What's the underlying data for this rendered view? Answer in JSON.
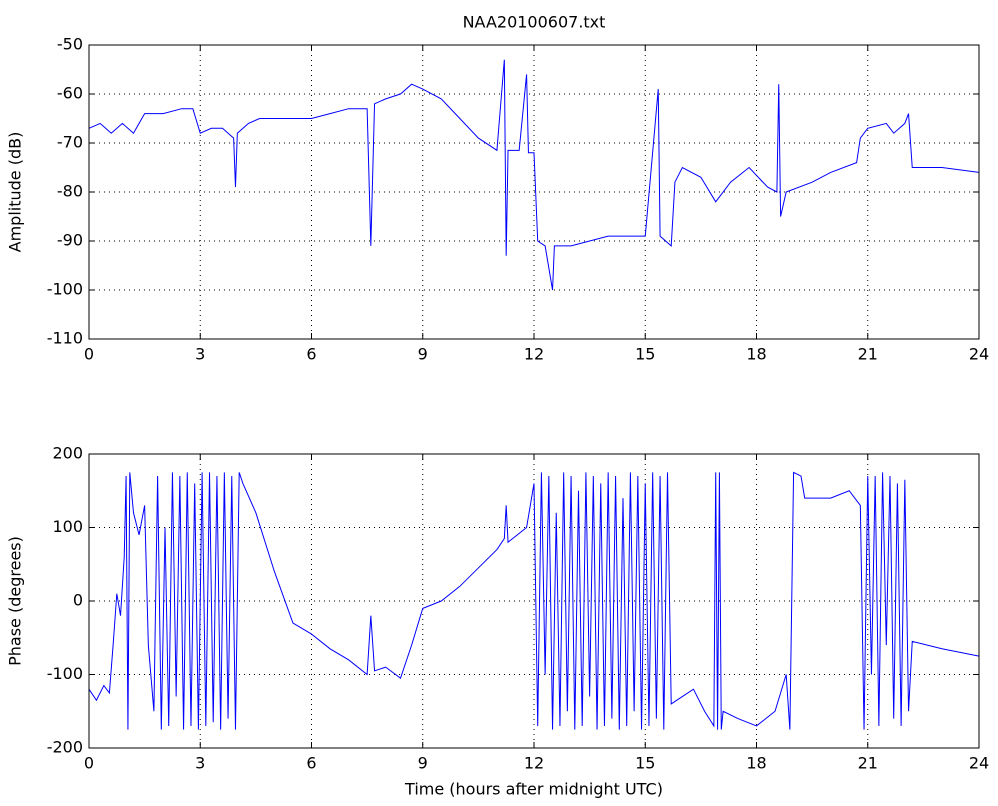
{
  "chart_data": [
    {
      "type": "line",
      "title": "NAA20100607.txt",
      "ylabel": "Amplitude (dB)",
      "xlim": [
        0,
        24
      ],
      "xticks": [
        0,
        3,
        6,
        9,
        12,
        15,
        18,
        21,
        24
      ],
      "ylim": [
        -110,
        -50
      ],
      "yticks": [
        -110,
        -100,
        -90,
        -80,
        -70,
        -60,
        -50
      ],
      "grid": true,
      "series": [
        {
          "color": "#0000ff",
          "x": [
            0,
            0.3,
            0.6,
            0.9,
            1.2,
            1.5,
            2.0,
            2.5,
            2.8,
            3.0,
            3.3,
            3.6,
            3.9,
            3.95,
            4.0,
            4.3,
            4.6,
            5.0,
            5.5,
            6.0,
            6.5,
            7.0,
            7.5,
            7.6,
            7.7,
            8.0,
            8.4,
            8.7,
            9.0,
            9.5,
            10.0,
            10.5,
            11.0,
            11.2,
            11.25,
            11.3,
            11.6,
            11.8,
            11.85,
            12.0,
            12.1,
            12.3,
            12.5,
            12.55,
            13.0,
            13.5,
            14.0,
            14.5,
            15.0,
            15.35,
            15.4,
            15.7,
            15.8,
            16.0,
            16.5,
            16.9,
            17.3,
            17.8,
            18.3,
            18.55,
            18.6,
            18.65,
            18.8,
            19.5,
            20.0,
            20.7,
            20.8,
            21.0,
            21.5,
            21.7,
            22.0,
            22.1,
            22.2,
            23.0,
            24.0
          ],
          "values": [
            -67,
            -66,
            -68,
            -66,
            -68,
            -64,
            -64,
            -63,
            -63,
            -68,
            -67,
            -67,
            -69,
            -79,
            -68,
            -66,
            -65,
            -65,
            -65,
            -65,
            -64,
            -63,
            -63,
            -91,
            -62,
            -61,
            -60,
            -58,
            -59,
            -61,
            -65,
            -69,
            -71.5,
            -53,
            -93,
            -71.5,
            -71.5,
            -56,
            -72,
            -72,
            -90,
            -91,
            -100,
            -91,
            -91,
            -90,
            -89,
            -89,
            -89,
            -59,
            -89,
            -91,
            -78,
            -75,
            -77,
            -82,
            -78,
            -75,
            -79,
            -80,
            -58,
            -85,
            -80,
            -78,
            -76,
            -74,
            -69,
            -67,
            -66,
            -68,
            -66,
            -64,
            -75,
            -75,
            -76
          ]
        }
      ]
    },
    {
      "type": "line",
      "xlabel": "Time (hours after midnight UTC)",
      "ylabel": "Phase (degrees)",
      "xlim": [
        0,
        24
      ],
      "xticks": [
        0,
        3,
        6,
        9,
        12,
        15,
        18,
        21,
        24
      ],
      "ylim": [
        -200,
        200
      ],
      "yticks": [
        -200,
        -100,
        0,
        100,
        200
      ],
      "grid": true,
      "series": [
        {
          "color": "#0000ff",
          "x": [
            0,
            0.2,
            0.4,
            0.55,
            0.65,
            0.75,
            0.85,
            0.95,
            1.0,
            1.05,
            1.1,
            1.2,
            1.35,
            1.5,
            1.6,
            1.75,
            1.85,
            1.95,
            2.05,
            2.15,
            2.25,
            2.35,
            2.45,
            2.55,
            2.65,
            2.75,
            2.85,
            2.95,
            3.05,
            3.15,
            3.25,
            3.35,
            3.45,
            3.55,
            3.65,
            3.75,
            3.85,
            3.95,
            4.05,
            4.15,
            4.5,
            5.0,
            5.5,
            6.0,
            6.5,
            7.0,
            7.5,
            7.6,
            7.7,
            8.0,
            8.4,
            8.7,
            9.0,
            9.5,
            10.0,
            10.5,
            11.0,
            11.2,
            11.25,
            11.3,
            11.8,
            12.0,
            12.1,
            12.2,
            12.3,
            12.4,
            12.5,
            12.6,
            12.7,
            12.8,
            12.9,
            13.0,
            13.1,
            13.2,
            13.3,
            13.4,
            13.5,
            13.6,
            13.7,
            13.8,
            13.9,
            14.0,
            14.1,
            14.2,
            14.3,
            14.4,
            14.5,
            14.6,
            14.7,
            14.8,
            14.9,
            15.0,
            15.1,
            15.2,
            15.3,
            15.4,
            15.5,
            15.6,
            15.7,
            16.0,
            16.3,
            16.6,
            16.85,
            16.9,
            16.95,
            17.0,
            17.05,
            17.1,
            17.5,
            18.0,
            18.5,
            18.8,
            18.9,
            19.0,
            19.2,
            19.3,
            20.0,
            20.5,
            20.8,
            20.9,
            21.0,
            21.1,
            21.2,
            21.3,
            21.4,
            21.5,
            21.6,
            21.7,
            21.8,
            21.9,
            22.0,
            22.1,
            22.2,
            23.0,
            24.0
          ],
          "values": [
            -120,
            -135,
            -115,
            -125,
            -60,
            10,
            -20,
            60,
            170,
            -175,
            175,
            120,
            90,
            130,
            -60,
            -150,
            170,
            -175,
            100,
            -170,
            175,
            -130,
            170,
            -175,
            175,
            -170,
            160,
            -175,
            175,
            -170,
            175,
            -165,
            170,
            -175,
            175,
            -160,
            170,
            -175,
            175,
            160,
            120,
            40,
            -30,
            -45,
            -65,
            -80,
            -100,
            -20,
            -95,
            -90,
            -105,
            -60,
            -10,
            0,
            20,
            45,
            70,
            85,
            130,
            80,
            100,
            160,
            -170,
            175,
            -100,
            170,
            -175,
            120,
            -170,
            175,
            -150,
            170,
            -175,
            150,
            -170,
            175,
            -130,
            170,
            -175,
            160,
            -170,
            175,
            -160,
            170,
            -175,
            140,
            -170,
            175,
            -150,
            170,
            -175,
            160,
            -170,
            175,
            -160,
            170,
            -175,
            175,
            -140,
            -130,
            -120,
            -150,
            -170,
            175,
            -175,
            175,
            -175,
            -150,
            -160,
            -170,
            -150,
            -100,
            -175,
            175,
            170,
            140,
            140,
            150,
            130,
            -175,
            170,
            -100,
            170,
            -170,
            175,
            -60,
            170,
            -160,
            160,
            -170,
            165,
            -150,
            -55,
            -65,
            -75
          ]
        }
      ]
    }
  ]
}
